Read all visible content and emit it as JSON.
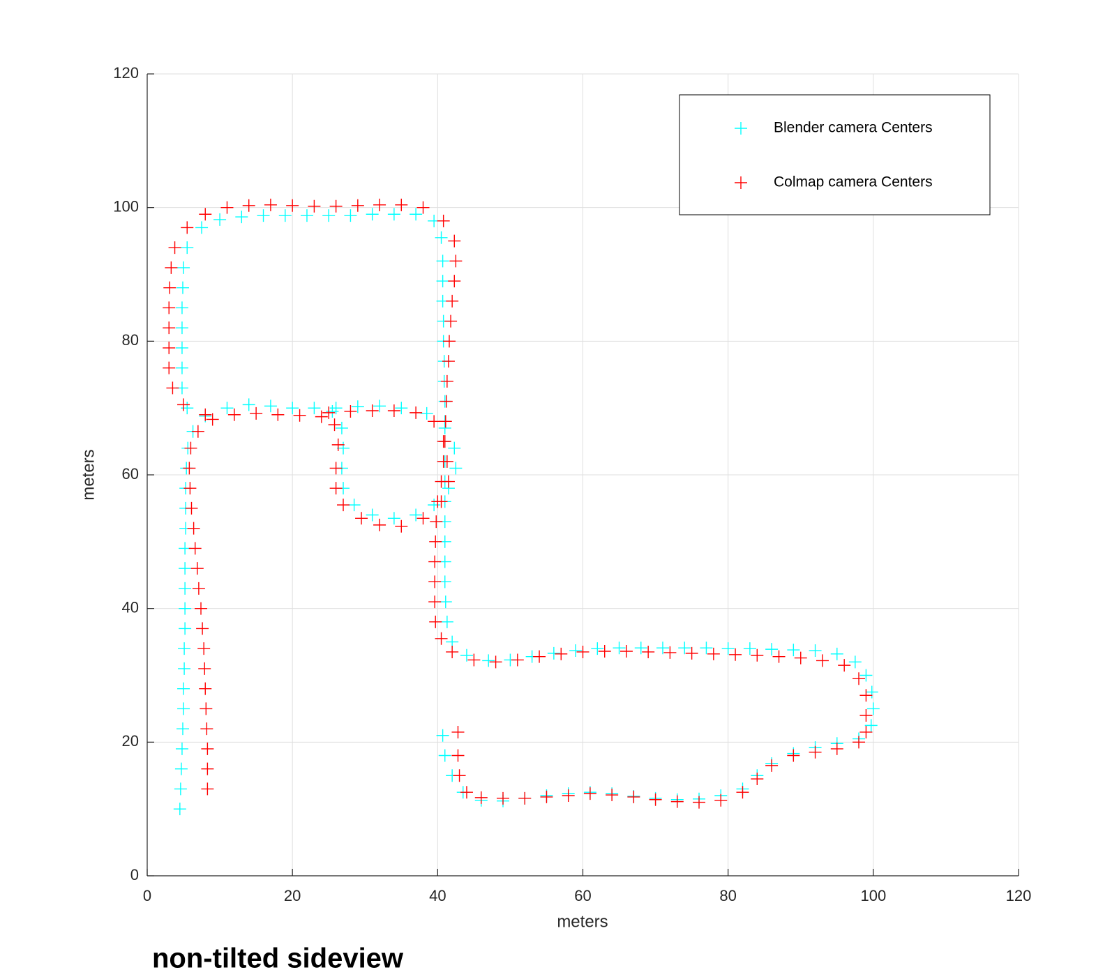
{
  "chart_data": {
    "type": "scatter",
    "xlabel": "meters",
    "ylabel": "meters",
    "caption": "non-tilted sideview",
    "xlim": [
      0,
      120
    ],
    "ylim": [
      0,
      120
    ],
    "xticks": [
      0,
      20,
      40,
      60,
      80,
      100,
      120
    ],
    "yticks": [
      0,
      20,
      40,
      60,
      80,
      100,
      120
    ],
    "grid": true,
    "legend": "northeast",
    "marker": "+",
    "series": [
      {
        "name": "Blender camera Centers",
        "color": "#00ffff",
        "x": [
          4.5,
          4.6,
          4.7,
          4.8,
          4.9,
          5,
          5,
          5.1,
          5.1,
          5.2,
          5.2,
          5.2,
          5.2,
          5.2,
          5.3,
          5.3,
          5.3,
          5.4,
          5.6,
          6.3,
          8,
          11,
          14,
          17,
          20,
          23,
          25.5,
          26.8,
          27,
          26.8,
          27,
          28.5,
          31,
          34,
          37,
          39.5,
          41.5,
          42.5,
          42.3,
          41,
          38.5,
          35,
          32,
          29,
          26,
          5.5,
          4.8,
          4.8,
          4.8,
          4.8,
          4.8,
          4.9,
          5,
          5.5,
          7.5,
          10,
          13,
          16,
          19,
          22,
          25,
          28,
          31,
          34,
          37,
          39.5,
          40.5,
          40.7,
          40.7,
          40.7,
          40.8,
          40.8,
          40.9,
          40.9,
          41,
          41,
          41,
          41,
          41,
          41,
          41,
          41,
          41,
          41,
          41.1,
          41.3,
          42,
          44,
          47,
          50,
          53,
          56,
          59,
          62,
          65,
          68,
          71,
          74,
          77,
          80,
          83,
          86,
          89,
          92,
          95,
          97.5,
          99,
          99.8,
          100,
          99.7,
          98,
          95,
          92,
          89,
          86,
          84,
          82,
          79,
          76,
          73,
          70,
          67,
          64,
          61,
          58,
          55,
          52,
          49,
          46,
          43.5,
          42,
          41,
          40.7
        ],
        "y": [
          10,
          13,
          16,
          19,
          22,
          25,
          28,
          31,
          34,
          37,
          40,
          43,
          46,
          49,
          52,
          55,
          58,
          61,
          64,
          66.5,
          68.8,
          70,
          70.5,
          70.3,
          70,
          70,
          69.5,
          67,
          64,
          61,
          58,
          55.5,
          54,
          53.5,
          54,
          55.5,
          58,
          61,
          64,
          67,
          69.2,
          70,
          70.3,
          70.2,
          70,
          70,
          73,
          76,
          79,
          82,
          85,
          88,
          91,
          94,
          97,
          98.2,
          98.6,
          98.8,
          98.8,
          98.8,
          98.8,
          98.8,
          99,
          99,
          99,
          98,
          95.5,
          92,
          89,
          86,
          83,
          80,
          77,
          74,
          71,
          68,
          65,
          62,
          59,
          56,
          53,
          50,
          47,
          44,
          41,
          38,
          35,
          33,
          32.2,
          32.3,
          32.8,
          33.3,
          33.7,
          34,
          34.1,
          34.1,
          34.1,
          34.1,
          34.1,
          34,
          34,
          33.9,
          33.8,
          33.7,
          33.2,
          32,
          30,
          27.5,
          25,
          22.5,
          20.5,
          19.8,
          19.2,
          18.3,
          16.8,
          15,
          13,
          12,
          11.5,
          11.4,
          11.6,
          11.9,
          12.3,
          12.5,
          12.3,
          12,
          11.6,
          11.2,
          11.3,
          12.5,
          15,
          18,
          21
        ]
      },
      {
        "name": "Colmap camera Centers",
        "color": "#ff0000",
        "x": [
          8.3,
          8.3,
          8.3,
          8.2,
          8.1,
          8,
          7.9,
          7.8,
          7.6,
          7.4,
          7.1,
          6.9,
          6.6,
          6.4,
          6.1,
          5.9,
          5.8,
          6,
          7,
          9,
          12,
          15,
          18,
          21,
          24,
          25.8,
          26.3,
          26,
          26,
          27,
          29.5,
          32,
          35,
          38,
          40.5,
          41.5,
          41.3,
          40.8,
          39.5,
          37,
          34,
          31,
          28,
          25,
          8,
          5,
          3.5,
          3,
          3,
          3,
          3,
          3.1,
          3.3,
          3.8,
          5.5,
          8,
          11,
          14,
          17,
          20,
          23,
          26,
          29,
          32,
          35,
          38,
          40.8,
          42.3,
          42.5,
          42.3,
          42,
          41.8,
          41.6,
          41.5,
          41.3,
          41.2,
          41.1,
          41,
          40.8,
          40.5,
          40,
          39.8,
          39.7,
          39.6,
          39.6,
          39.6,
          39.7,
          40.5,
          42,
          45,
          48,
          51,
          54,
          57,
          60,
          63,
          66,
          69,
          72,
          75,
          78,
          81,
          84,
          87,
          90,
          93,
          96,
          98,
          99,
          99,
          99,
          98,
          95,
          92,
          89,
          86,
          84,
          82,
          79,
          76,
          73,
          70,
          67,
          64,
          61,
          58,
          55,
          52,
          49,
          46,
          44,
          43,
          42.8,
          42.8
        ],
        "y": [
          13,
          16,
          19,
          22,
          25,
          28,
          31,
          34,
          37,
          40,
          43,
          46,
          49,
          52,
          55,
          58,
          61,
          64,
          66.5,
          68.3,
          69,
          69.2,
          69,
          68.9,
          68.7,
          67.5,
          64.5,
          61,
          58,
          55.5,
          53.5,
          52.5,
          52.3,
          53.5,
          56,
          59,
          62,
          65,
          68,
          69.3,
          69.6,
          69.6,
          69.5,
          69.3,
          69,
          70.5,
          73,
          76,
          79,
          82,
          85,
          88,
          91,
          94,
          97,
          99,
          100,
          100.3,
          100.4,
          100.3,
          100.2,
          100.2,
          100.3,
          100.4,
          100.4,
          100,
          98,
          95,
          92,
          89,
          86,
          83,
          80,
          77,
          74,
          71,
          68,
          65,
          62,
          59,
          56,
          53,
          50,
          47,
          44,
          41,
          38,
          35.5,
          33.5,
          32.3,
          32,
          32.3,
          32.8,
          33.2,
          33.5,
          33.6,
          33.6,
          33.5,
          33.4,
          33.3,
          33.2,
          33.1,
          33,
          32.8,
          32.6,
          32.2,
          31.5,
          29.5,
          27,
          24,
          21.5,
          20,
          19,
          18.5,
          18,
          16.5,
          14.5,
          12.5,
          11.3,
          11,
          11.1,
          11.4,
          11.8,
          12.1,
          12.3,
          12,
          11.8,
          11.6,
          11.6,
          11.7,
          12.5,
          15,
          18,
          21.5
        ]
      }
    ]
  }
}
